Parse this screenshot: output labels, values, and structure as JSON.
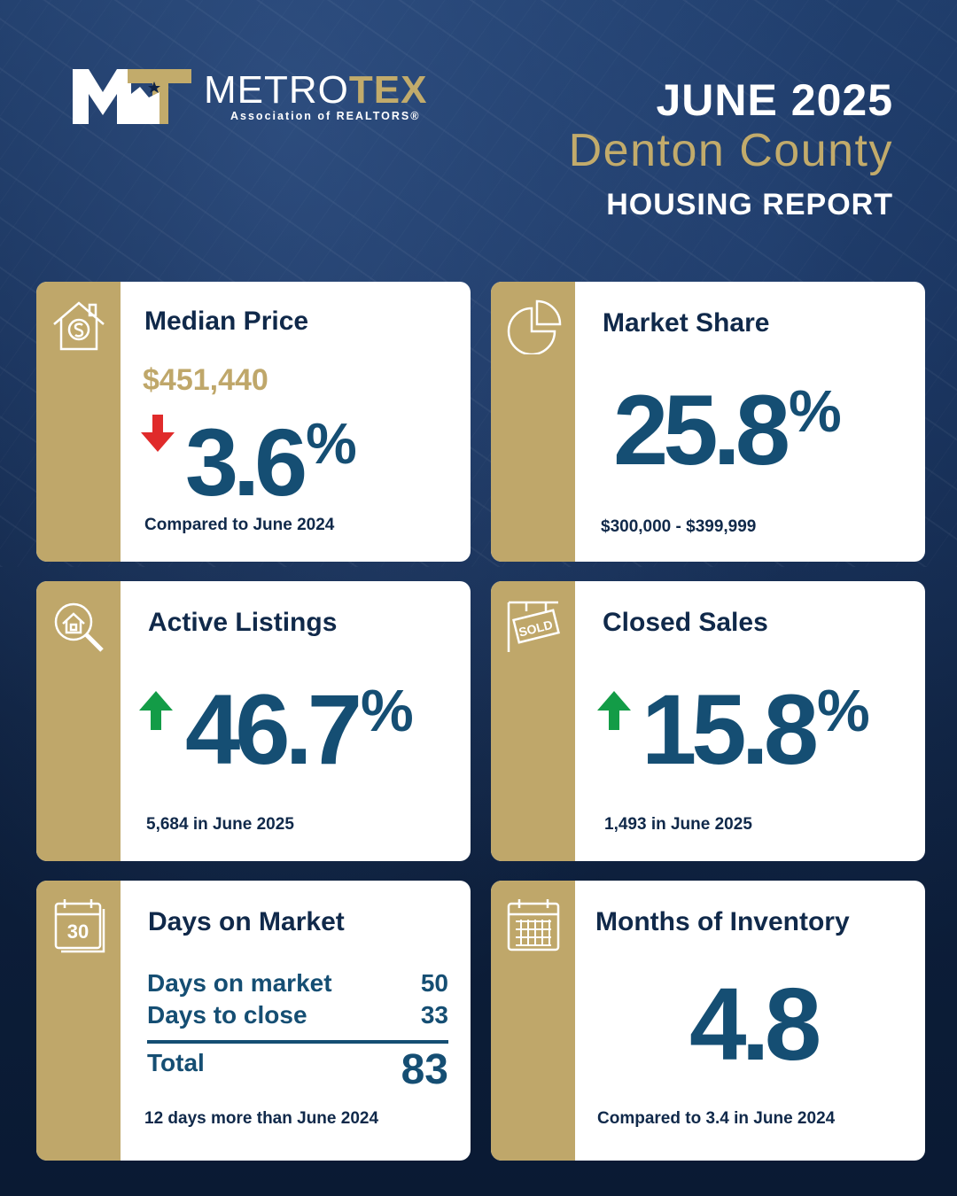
{
  "brand": {
    "logo_initials": "MT",
    "name_part1": "METRO",
    "name_part2": "TEX",
    "subtitle": "Association of REALTORS®"
  },
  "header": {
    "month": "JUNE 2025",
    "county": "Denton County",
    "report": "HOUSING REPORT"
  },
  "colors": {
    "navy": "#10294a",
    "accent_blue": "#154e73",
    "gold": "#bfa76a",
    "down_red": "#e02b2b",
    "up_green": "#139c47"
  },
  "cards": {
    "median_price": {
      "icon": "house-dollar-icon",
      "title": "Median Price",
      "price": "$451,440",
      "change": "3.6",
      "unit": "%",
      "direction": "down",
      "note": "Compared to June 2024"
    },
    "market_share": {
      "icon": "pie-chart-icon",
      "title": "Market Share",
      "value": "25.8",
      "unit": "%",
      "note": "$300,000 - $399,999"
    },
    "active_listings": {
      "icon": "search-house-icon",
      "title": "Active Listings",
      "change": "46.7",
      "unit": "%",
      "direction": "up",
      "note": "5,684 in June 2025"
    },
    "closed_sales": {
      "icon": "sold-sign-icon",
      "title": "Closed Sales",
      "change": "15.8",
      "unit": "%",
      "direction": "up",
      "note": "1,493 in June 2025"
    },
    "days_on_market": {
      "icon": "calendar-30-icon",
      "icon_text": "30",
      "title": "Days on Market",
      "rows": [
        {
          "label": "Days on market",
          "value": "50"
        },
        {
          "label": "Days to close",
          "value": "33"
        }
      ],
      "total_label": "Total",
      "total_value": "83",
      "note": "12 days more than June 2024"
    },
    "months_inventory": {
      "icon": "calendar-grid-icon",
      "title": "Months of Inventory",
      "value": "4.8",
      "note": "Compared to 3.4 in June 2024"
    }
  }
}
